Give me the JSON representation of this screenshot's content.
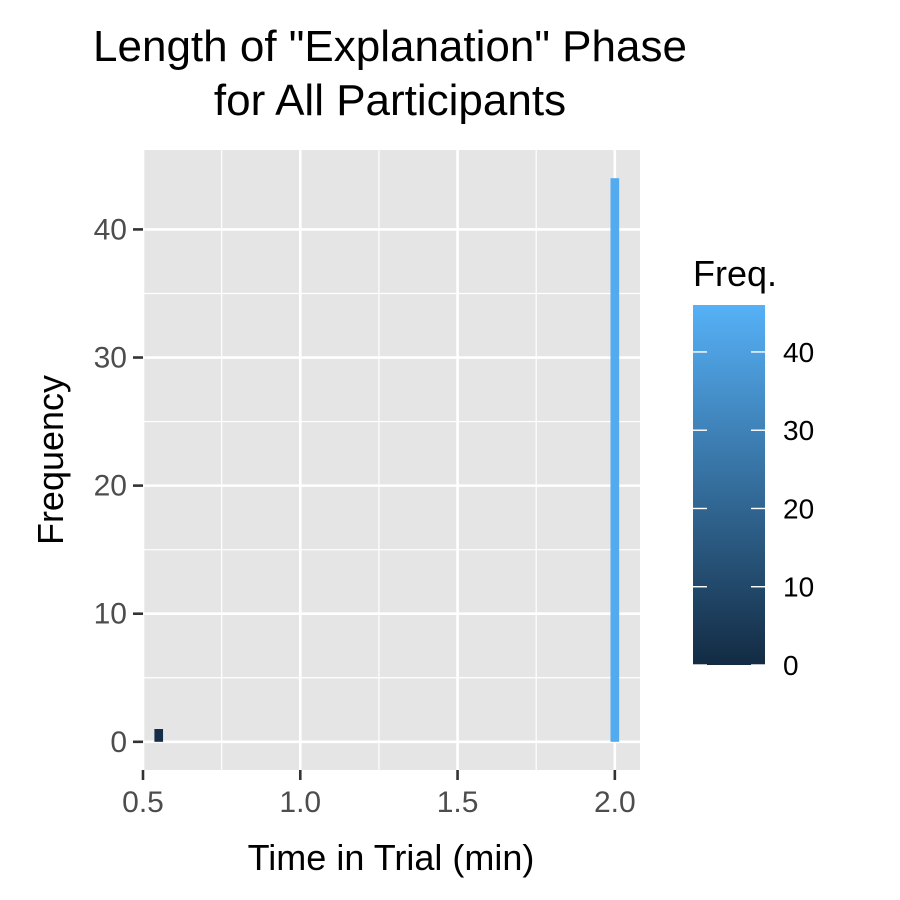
{
  "chart_data": {
    "type": "bar",
    "title_lines": [
      "Length of \"Explanation\" Phase",
      "for All Participants"
    ],
    "xlabel": "Time in Trial (min)",
    "ylabel": "Frequency",
    "xlim": [
      0.5,
      2.08
    ],
    "ylim": [
      -2.2,
      46.2
    ],
    "x_ticks": [
      0.5,
      1.0,
      1.5,
      2.0
    ],
    "x_tick_labels": [
      "0.5",
      "1.0",
      "1.5",
      "2.0"
    ],
    "y_ticks": [
      0,
      10,
      20,
      30,
      40
    ],
    "y_tick_labels": [
      "0",
      "10",
      "20",
      "30",
      "40"
    ],
    "bin_width": 0.05,
    "bins": [
      {
        "x": 0.55,
        "count": 1
      },
      {
        "x": 2.0,
        "count": 44
      }
    ],
    "grid": true,
    "legend": {
      "title": "Freq.",
      "placement": "right",
      "type": "colorbar",
      "range": [
        0,
        46
      ],
      "ticks": [
        0,
        10,
        20,
        30,
        40
      ],
      "tick_labels": [
        "0",
        "10",
        "20",
        "30",
        "40"
      ],
      "color_low": "#132B43",
      "color_high": "#56B1F7"
    },
    "panel_color": "#e5e5e5",
    "grid_color": "#ffffff"
  }
}
